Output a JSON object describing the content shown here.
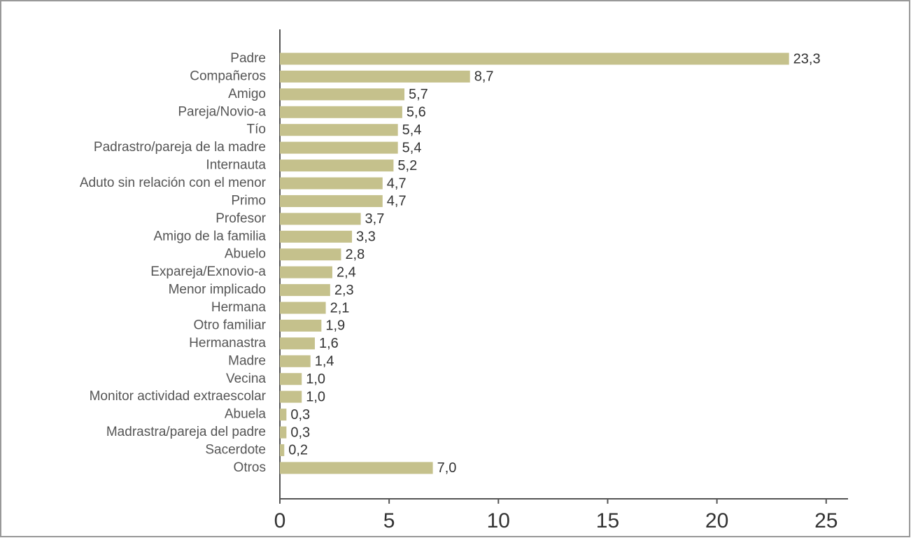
{
  "chart_data": {
    "type": "bar",
    "orientation": "horizontal",
    "categories": [
      "Padre",
      "Compañeros",
      "Amigo",
      "Pareja/Novio-a",
      "Tío",
      "Padrastro/pareja de la madre",
      "Internauta",
      "Aduto sin relación con el menor",
      "Primo",
      "Profesor",
      "Amigo de la familia",
      "Abuelo",
      "Expareja/Exnovio-a",
      "Menor implicado",
      "Hermana",
      "Otro familiar",
      "Hermanastra",
      "Madre",
      "Vecina",
      "Monitor actividad extraescolar",
      "Abuela",
      "Madrastra/pareja del padre",
      "Sacerdote",
      "Otros"
    ],
    "values": [
      23.3,
      8.7,
      5.7,
      5.6,
      5.4,
      5.4,
      5.2,
      4.7,
      4.7,
      3.7,
      3.3,
      2.8,
      2.4,
      2.3,
      2.1,
      1.9,
      1.6,
      1.4,
      1.0,
      1.0,
      0.3,
      0.3,
      0.2,
      7.0
    ],
    "value_labels": [
      "23,3",
      "8,7",
      "5,7",
      "5,6",
      "5,4",
      "5,4",
      "5,2",
      "4,7",
      "4,7",
      "3,7",
      "3,3",
      "2,8",
      "2,4",
      "2,3",
      "2,1",
      "1,9",
      "1,6",
      "1,4",
      "1,0",
      "1,0",
      "0,3",
      "0,3",
      "0,2",
      "7,0"
    ],
    "color": "#c5c18c",
    "xlim": [
      0,
      26
    ],
    "xticks": [
      0,
      5,
      10,
      15,
      20,
      25
    ]
  }
}
